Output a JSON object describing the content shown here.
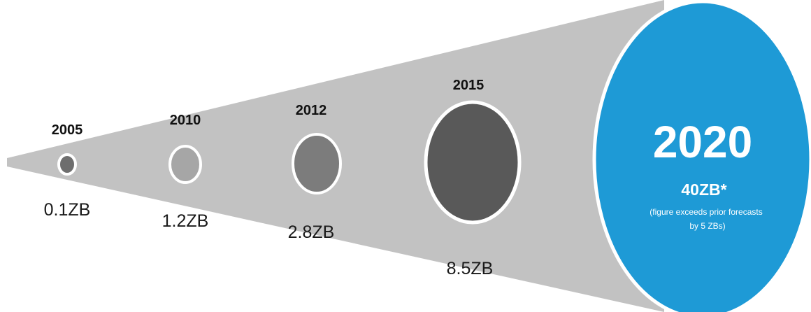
{
  "colors": {
    "funnel": "#c2c2c2",
    "ring": "#ffffff",
    "highlight": "#1e9ad6",
    "text": "#111111",
    "highlight_text": "#ffffff"
  },
  "milestones": [
    {
      "year": "2005",
      "size": "0.1ZB",
      "fill": "#6e6e6e"
    },
    {
      "year": "2010",
      "size": "1.2ZB",
      "fill": "#a6a6a6"
    },
    {
      "year": "2012",
      "size": "2.8ZB",
      "fill": "#7c7c7c"
    },
    {
      "year": "2015",
      "size": "8.5ZB",
      "fill": "#595959"
    }
  ],
  "highlight": {
    "year": "2020",
    "size": "40ZB*",
    "note_line1": "(figure exceeds prior forecasts",
    "note_line2": "by 5 ZBs)"
  }
}
